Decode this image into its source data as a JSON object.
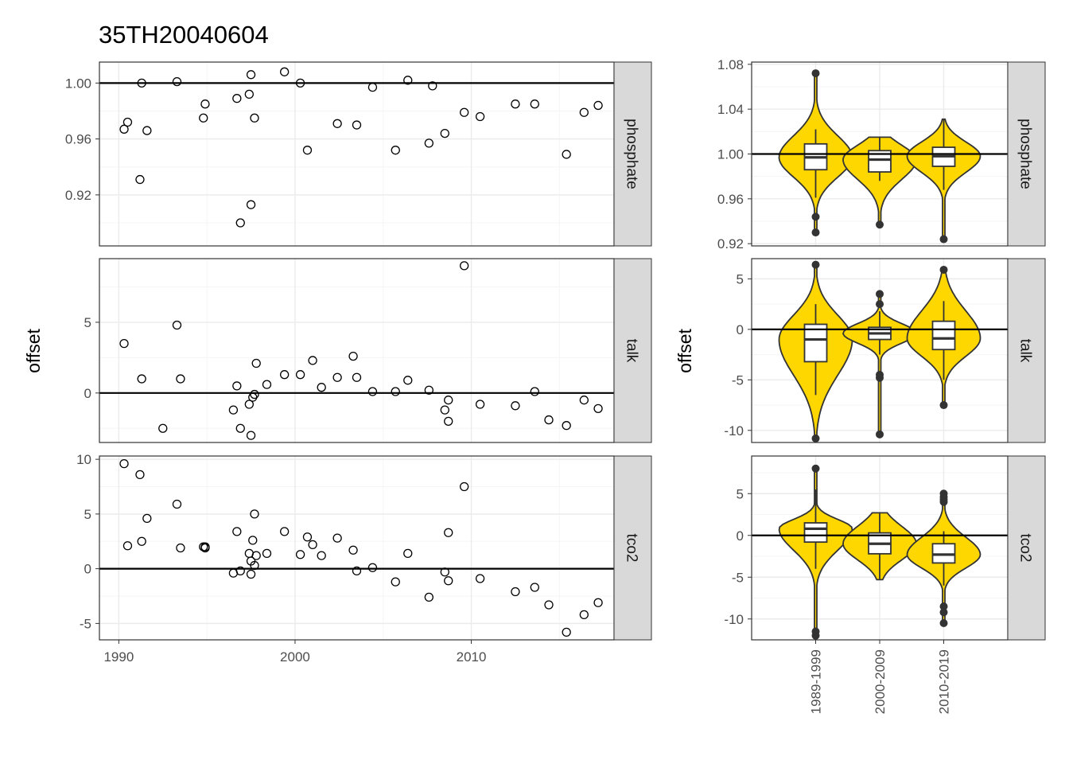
{
  "title": "35TH20040604",
  "ylabel": "offset",
  "colors": {
    "violin_fill": "#FFD700",
    "violin_line": "#333333",
    "refline": "#000000",
    "strip_bg": "#D9D9D9",
    "grid_major": "#EBEBEB",
    "grid_minor": "#F5F5F5"
  },
  "chart_data": [
    {
      "type": "scatter",
      "xlabel": "",
      "ylabel": "offset",
      "xlim": [
        1988.9,
        2018.1
      ],
      "xticks": [
        1990,
        2000,
        2010
      ],
      "xtick_labels": [
        "1990",
        "2000",
        "2010"
      ],
      "facets": [
        {
          "name": "phosphate",
          "ylim": [
            0.8835,
            1.015
          ],
          "yticks": [
            0.92,
            0.96,
            1.0
          ],
          "ytick_labels": [
            "0.92",
            "0.96",
            "1.00"
          ],
          "refline": 1,
          "points": [
            [
              1990.3,
              0.967
            ],
            [
              1990.5,
              0.972
            ],
            [
              1991.2,
              0.931
            ],
            [
              1991.3,
              1.0
            ],
            [
              1991.6,
              0.966
            ],
            [
              1993.3,
              1.001
            ],
            [
              1994.8,
              0.975
            ],
            [
              1994.9,
              0.985
            ],
            [
              1996.7,
              0.989
            ],
            [
              1996.9,
              0.9
            ],
            [
              1997.4,
              0.992
            ],
            [
              1997.5,
              1.006
            ],
            [
              1997.5,
              0.913
            ],
            [
              1997.7,
              0.975
            ],
            [
              1999.4,
              1.008
            ],
            [
              2000.3,
              1.0
            ],
            [
              2000.7,
              0.952
            ],
            [
              2002.4,
              0.971
            ],
            [
              2003.5,
              0.97
            ],
            [
              2004.4,
              0.997
            ],
            [
              2005.7,
              0.952
            ],
            [
              2006.4,
              1.002
            ],
            [
              2007.6,
              0.957
            ],
            [
              2007.8,
              0.998
            ],
            [
              2008.5,
              0.964
            ],
            [
              2009.6,
              0.979
            ],
            [
              2010.5,
              0.976
            ],
            [
              2012.5,
              0.985
            ],
            [
              2013.6,
              0.985
            ],
            [
              2015.4,
              0.949
            ],
            [
              2016.4,
              0.979
            ],
            [
              2017.2,
              0.984
            ]
          ]
        },
        {
          "name": "talk",
          "ylim": [
            -3.5,
            9.5
          ],
          "yticks": [
            0,
            5
          ],
          "ytick_labels": [
            "0",
            "5"
          ],
          "refline": 0,
          "points": [
            [
              1990.3,
              3.5
            ],
            [
              1991.3,
              1.0
            ],
            [
              1992.5,
              -2.5
            ],
            [
              1993.3,
              4.8
            ],
            [
              1993.5,
              1.0
            ],
            [
              1996.5,
              -1.2
            ],
            [
              1996.7,
              0.5
            ],
            [
              1996.9,
              -2.5
            ],
            [
              1997.4,
              -0.8
            ],
            [
              1997.5,
              -3.0
            ],
            [
              1997.6,
              -0.3
            ],
            [
              1997.7,
              -0.1
            ],
            [
              1997.8,
              2.1
            ],
            [
              1998.4,
              0.6
            ],
            [
              1999.4,
              1.3
            ],
            [
              2000.3,
              1.3
            ],
            [
              2001.0,
              2.3
            ],
            [
              2001.5,
              0.4
            ],
            [
              2002.4,
              1.1
            ],
            [
              2003.3,
              2.6
            ],
            [
              2003.5,
              1.1
            ],
            [
              2004.4,
              0.1
            ],
            [
              2005.7,
              0.1
            ],
            [
              2006.4,
              0.9
            ],
            [
              2007.6,
              0.2
            ],
            [
              2008.5,
              -1.2
            ],
            [
              2008.7,
              -0.5
            ],
            [
              2008.7,
              -2.0
            ],
            [
              2009.6,
              9.0
            ],
            [
              2010.5,
              -0.8
            ],
            [
              2012.5,
              -0.9
            ],
            [
              2013.6,
              0.1
            ],
            [
              2014.4,
              -1.9
            ],
            [
              2015.4,
              -2.3
            ],
            [
              2016.4,
              -0.5
            ],
            [
              2017.2,
              -1.1
            ]
          ]
        },
        {
          "name": "tco2",
          "ylim": [
            -6.5,
            10.3
          ],
          "yticks": [
            -5,
            0,
            5,
            10
          ],
          "ytick_labels": [
            "-5",
            "0",
            "5",
            "10"
          ],
          "refline": 0,
          "points": [
            [
              1990.3,
              9.6
            ],
            [
              1990.5,
              2.1
            ],
            [
              1991.2,
              8.6
            ],
            [
              1991.3,
              2.5
            ],
            [
              1991.6,
              4.6
            ],
            [
              1993.3,
              5.9
            ],
            [
              1993.5,
              1.9
            ],
            [
              1994.8,
              2.0
            ],
            [
              1994.9,
              2.0
            ],
            [
              1994.9,
              1.9
            ],
            [
              1996.5,
              -0.4
            ],
            [
              1996.7,
              3.4
            ],
            [
              1996.9,
              -0.2
            ],
            [
              1997.4,
              1.4
            ],
            [
              1997.5,
              0.7
            ],
            [
              1997.5,
              -0.5
            ],
            [
              1997.6,
              2.6
            ],
            [
              1997.7,
              0.3
            ],
            [
              1997.7,
              5.0
            ],
            [
              1997.8,
              1.2
            ],
            [
              1998.4,
              1.4
            ],
            [
              1999.4,
              3.4
            ],
            [
              2000.3,
              1.3
            ],
            [
              2000.7,
              2.9
            ],
            [
              2001.0,
              2.2
            ],
            [
              2001.5,
              1.2
            ],
            [
              2002.4,
              2.8
            ],
            [
              2003.3,
              1.7
            ],
            [
              2003.5,
              -0.2
            ],
            [
              2004.4,
              0.1
            ],
            [
              2005.7,
              -1.2
            ],
            [
              2006.4,
              1.4
            ],
            [
              2007.6,
              -2.6
            ],
            [
              2008.5,
              -0.3
            ],
            [
              2008.7,
              3.3
            ],
            [
              2008.7,
              -1.1
            ],
            [
              2009.6,
              7.5
            ],
            [
              2010.5,
              -0.9
            ],
            [
              2012.5,
              -2.1
            ],
            [
              2013.6,
              -1.7
            ],
            [
              2014.4,
              -3.3
            ],
            [
              2015.4,
              -5.8
            ],
            [
              2016.4,
              -4.2
            ],
            [
              2017.2,
              -3.1
            ]
          ]
        }
      ]
    },
    {
      "type": "violin",
      "xlabel": "",
      "ylabel": "offset",
      "categories": [
        "1989-1999",
        "2000-2009",
        "2010-2019"
      ],
      "facets": [
        {
          "name": "phosphate",
          "ylim": [
            0.918,
            1.082
          ],
          "yticks": [
            0.92,
            0.96,
            1.0,
            1.04,
            1.08
          ],
          "ytick_labels": [
            "0.92",
            "0.96",
            "1.00",
            "1.04",
            "1.08"
          ],
          "refline": 1,
          "groups": [
            {
              "box": [
                0.986,
                0.997,
                1.009
              ],
              "whisker": [
                0.961,
                1.022
              ],
              "violin_range": [
                0.93,
                1.072
              ],
              "outliers": [
                0.93,
                0.944,
                1.072
              ]
            },
            {
              "box": [
                0.984,
                0.995,
                1.003
              ],
              "whisker": [
                0.976,
                1.015
              ],
              "violin_range": [
                0.937,
                1.015
              ],
              "outliers": [
                0.937
              ]
            },
            {
              "box": [
                0.989,
                0.998,
                1.006
              ],
              "whisker": [
                0.968,
                1.031
              ],
              "violin_range": [
                0.924,
                1.031
              ],
              "outliers": [
                0.924
              ]
            }
          ]
        },
        {
          "name": "talk",
          "ylim": [
            -11.2,
            7.0
          ],
          "yticks": [
            -10,
            -5,
            0,
            5
          ],
          "ytick_labels": [
            "-10",
            "-5",
            "0",
            "5"
          ],
          "refline": 0,
          "groups": [
            {
              "box": [
                -3.2,
                -1.0,
                0.5
              ],
              "whisker": [
                -6.5,
                2.5
              ],
              "violin_range": [
                -10.8,
                6.4
              ],
              "outliers": [
                -10.8,
                6.4
              ]
            },
            {
              "box": [
                -1.0,
                -0.4,
                0.2
              ],
              "whisker": [
                -2.5,
                1.8
              ],
              "violin_range": [
                -10.4,
                3.5
              ],
              "outliers": [
                -10.4,
                -4.5,
                -4.8,
                2.5,
                3.5
              ]
            },
            {
              "box": [
                -2.0,
                -0.9,
                0.8
              ],
              "whisker": [
                -5.0,
                2.8
              ],
              "violin_range": [
                -7.5,
                5.9
              ],
              "outliers": [
                -7.5,
                5.9
              ]
            }
          ]
        },
        {
          "name": "tco2",
          "ylim": [
            -12.5,
            9.5
          ],
          "yticks": [
            -10,
            -5,
            0,
            5
          ],
          "ytick_labels": [
            "-10",
            "-5",
            "0",
            "5"
          ],
          "refline": 0,
          "groups": [
            {
              "box": [
                -0.8,
                0.8,
                1.5
              ],
              "whisker": [
                -4.0,
                5.5
              ],
              "violin_range": [
                -12.0,
                8.0
              ],
              "outliers": [
                -12.0,
                -11.5,
                8.0
              ]
            },
            {
              "box": [
                -2.2,
                -1.0,
                0.3
              ],
              "whisker": [
                -5.3,
                2.7
              ],
              "violin_range": [
                -5.3,
                2.7
              ],
              "outliers": []
            },
            {
              "box": [
                -3.3,
                -2.3,
                -1.0
              ],
              "whisker": [
                -6.0,
                0.5
              ],
              "violin_range": [
                -10.5,
                5.0
              ],
              "outliers": [
                -10.5,
                -9.2,
                -8.5,
                4.0,
                4.3,
                4.6,
                5.0
              ]
            }
          ]
        }
      ]
    }
  ]
}
